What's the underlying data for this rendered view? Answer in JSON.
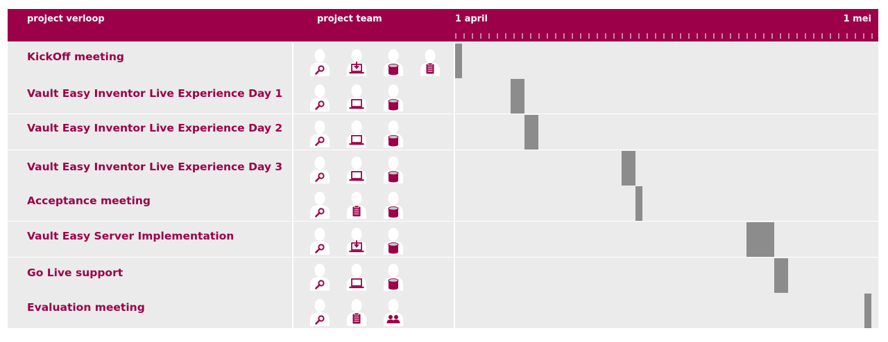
{
  "header": {
    "col_task": "project verloop",
    "col_team": "project team",
    "date_start": "1 april",
    "date_end": "1 mei"
  },
  "colors": {
    "accent": "#9c0049",
    "row_bg": "#ebebeb",
    "bar": "#8c8c8c",
    "person": "#ffffff"
  },
  "chart_data": {
    "type": "gantt",
    "x_range": [
      "1 april",
      "1 mei"
    ],
    "x_unit": "day offset from 1 april",
    "x_span_days": 30,
    "tasks": [
      {
        "name": "KickOff meeting",
        "start": 0,
        "end": 0.5,
        "team": [
          "magnifier-icon",
          "download-laptop-icon",
          "database-icon",
          "clipboard-icon"
        ]
      },
      {
        "name": "Vault Easy Inventor Live Experience Day 1",
        "start": 4,
        "end": 5,
        "team": [
          "magnifier-icon",
          "laptop-icon",
          "database-icon"
        ]
      },
      {
        "name": "Vault Easy Inventor Live Experience Day 2",
        "start": 5,
        "end": 6,
        "team": [
          "magnifier-icon",
          "laptop-icon",
          "database-icon"
        ]
      },
      {
        "name": "Vault Easy Inventor Live Experience Day 3",
        "start": 12,
        "end": 13,
        "team": [
          "magnifier-icon",
          "laptop-icon",
          "database-icon"
        ]
      },
      {
        "name": "Acceptance meeting",
        "start": 13,
        "end": 13.5,
        "team": [
          "magnifier-icon",
          "clipboard-icon",
          "database-icon"
        ]
      },
      {
        "name": "Vault Easy Server Implementation",
        "start": 21,
        "end": 23,
        "team": [
          "magnifier-icon",
          "download-laptop-icon",
          "database-icon"
        ]
      },
      {
        "name": "Go Live support",
        "start": 23,
        "end": 24,
        "team": [
          "magnifier-icon",
          "laptop-icon",
          "database-icon"
        ]
      },
      {
        "name": "Evaluation meeting",
        "start": 29.5,
        "end": 30,
        "team": [
          "magnifier-icon",
          "clipboard-icon",
          "group-icon"
        ]
      }
    ]
  }
}
